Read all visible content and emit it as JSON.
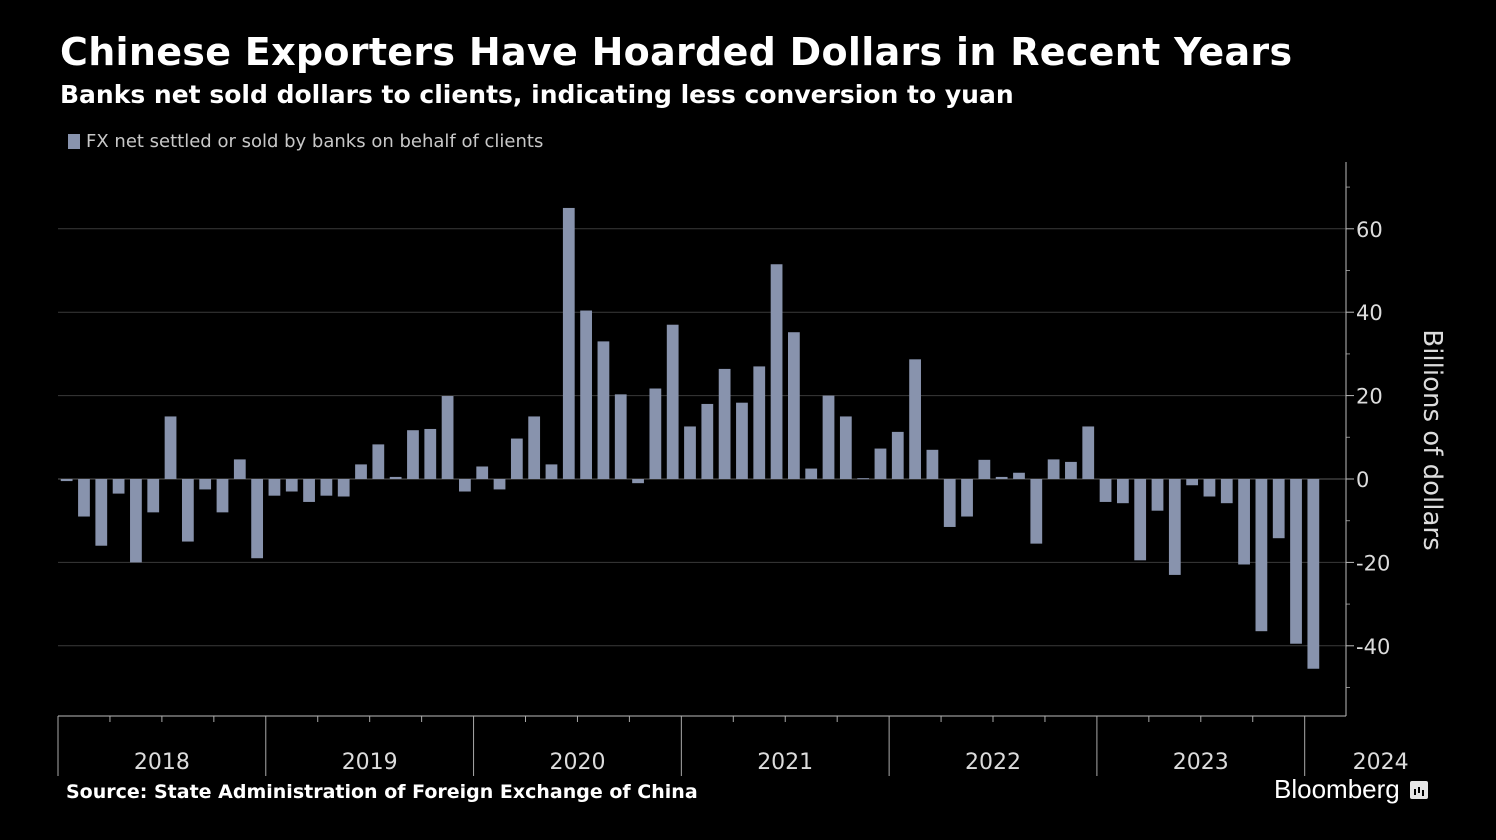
{
  "header": {
    "title": "Chinese Exporters Have Hoarded Dollars in Recent Years",
    "subtitle": "Banks net sold dollars to clients, indicating less conversion to yuan"
  },
  "footer": {
    "source": "Source: State Administration of Foreign Exchange of China",
    "logo_text": "Bloomberg"
  },
  "colors": {
    "bar": "#8893ad",
    "background": "#000000",
    "grid": "#3a3a3a",
    "text": "#ffffff",
    "axis_text": "#dcdcdc"
  },
  "chart_data": {
    "type": "bar",
    "title": "Chinese Exporters Have Hoarded Dollars in Recent Years",
    "subtitle": "Banks net sold dollars to clients, indicating less conversion to yuan",
    "ylabel": "Billions of dollars",
    "xlabel": "",
    "ylim": [
      -57,
      75
    ],
    "yticks": [
      60,
      40,
      20,
      0,
      -20,
      -40
    ],
    "ytick_labels": [
      "60",
      "40",
      "20",
      "0",
      "-20",
      "-40"
    ],
    "grid": true,
    "legend_position": "top-left",
    "years": [
      "2018",
      "2019",
      "2020",
      "2021",
      "2022",
      "2023",
      "2024"
    ],
    "series": [
      {
        "name": "FX net settled or sold by banks on behalf of clients",
        "color": "#8893ad",
        "values": [
          -0.5,
          -9,
          -16,
          -3.5,
          -20,
          -8,
          15,
          -15,
          -2.5,
          -8,
          4.7,
          -19,
          -4,
          -3,
          -5.5,
          -4,
          -4.2,
          3.5,
          8.3,
          0.5,
          11.7,
          12,
          19.9,
          -3,
          3,
          -2.5,
          9.7,
          15,
          3.5,
          65,
          40.4,
          33,
          20.3,
          -1,
          21.7,
          37,
          12.6,
          18,
          26.4,
          18.3,
          27,
          51.5,
          35.2,
          2.5,
          20,
          15,
          0.2,
          7.3,
          11.3,
          28.7,
          7,
          -11.5,
          -9,
          4.6,
          0.5,
          1.5,
          -15.5,
          4.7,
          4.1,
          12.6,
          -5.5,
          -5.8,
          -19.5,
          -7.6,
          -23,
          -1.5,
          -4.2,
          -5.8,
          -20.5,
          -36.5,
          -14.2,
          -39.5,
          -45.5
        ]
      }
    ]
  }
}
